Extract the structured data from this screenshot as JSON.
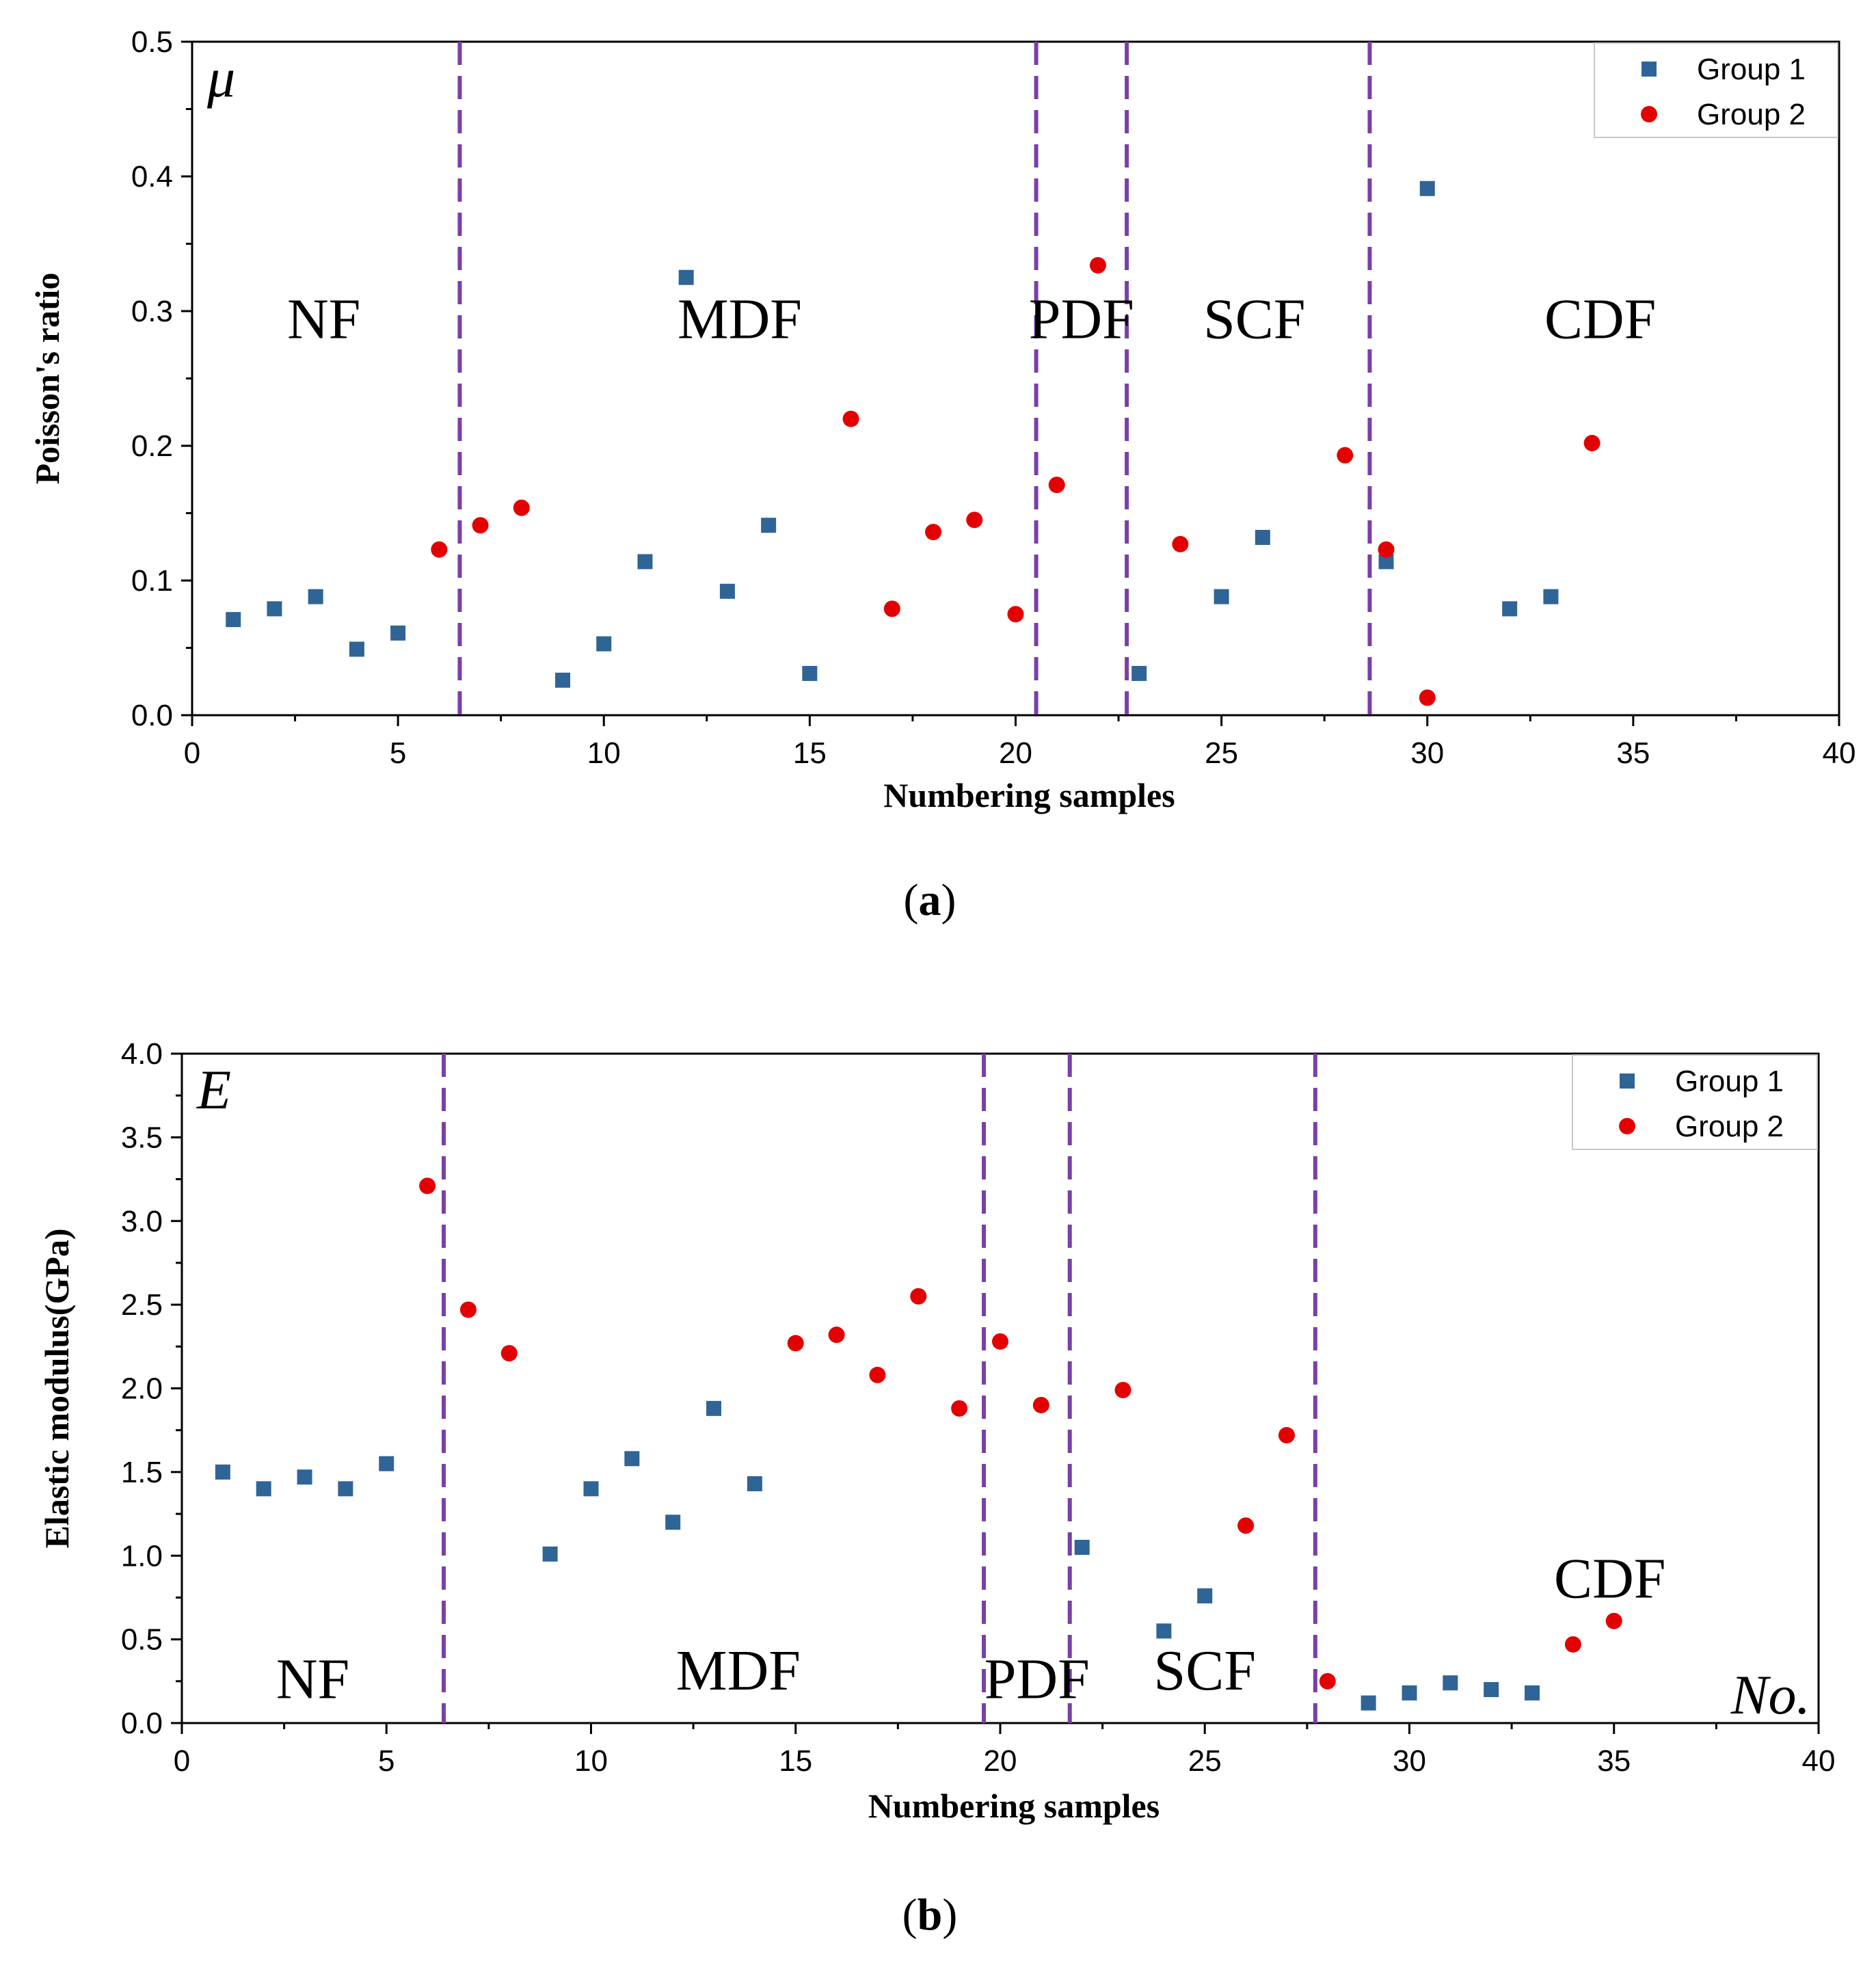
{
  "colors": {
    "group1": "#2f6497",
    "group2": "#e30000",
    "divider": "#7a3fa8",
    "axis": "#000000",
    "legend_border": "#c8c8c8"
  },
  "chart_data": [
    {
      "id": "a",
      "type": "scatter",
      "caption_open": "(",
      "caption_letter": "a",
      "caption_close": ")",
      "corner_symbol": "μ",
      "xlabel": "Numbering samples",
      "ylabel": "Poisson's ratio",
      "xlim": [
        0,
        40
      ],
      "ylim": [
        0,
        0.5
      ],
      "xticks": [
        0,
        5,
        10,
        15,
        20,
        25,
        30,
        35,
        40
      ],
      "xtick_labels": [
        "0",
        "5",
        "10",
        "15",
        "20",
        "25",
        "30",
        "35",
        "40"
      ],
      "yticks": [
        0.0,
        0.1,
        0.2,
        0.3,
        0.4,
        0.5
      ],
      "ytick_labels": [
        "0.0",
        "0.1",
        "0.2",
        "0.3",
        "0.4",
        "0.5"
      ],
      "dividers": [
        6.5,
        20.5,
        22.7,
        28.6
      ],
      "regions": [
        {
          "label": "NF",
          "x": 3.2,
          "y": 0.28
        },
        {
          "label": "MDF",
          "x": 13.3,
          "y": 0.28
        },
        {
          "label": "PDF",
          "x": 21.6,
          "y": 0.28
        },
        {
          "label": "SCF",
          "x": 25.8,
          "y": 0.28
        },
        {
          "label": "CDF",
          "x": 34.2,
          "y": 0.28
        }
      ],
      "legend_position": "top-right",
      "series": [
        {
          "name": "Group 1",
          "marker": "square",
          "points": [
            [
              1,
              0.071
            ],
            [
              2,
              0.079
            ],
            [
              3,
              0.088
            ],
            [
              4,
              0.049
            ],
            [
              5,
              0.061
            ],
            [
              9,
              0.026
            ],
            [
              10,
              0.053
            ],
            [
              11,
              0.114
            ],
            [
              12,
              0.325
            ],
            [
              13,
              0.092
            ],
            [
              14,
              0.141
            ],
            [
              15,
              0.031
            ],
            [
              23,
              0.031
            ],
            [
              25,
              0.088
            ],
            [
              26,
              0.132
            ],
            [
              29,
              0.114
            ],
            [
              30,
              0.391
            ],
            [
              32,
              0.079
            ],
            [
              33,
              0.088
            ]
          ]
        },
        {
          "name": "Group 2",
          "marker": "circle",
          "points": [
            [
              6,
              0.123
            ],
            [
              7,
              0.141
            ],
            [
              8,
              0.154
            ],
            [
              16,
              0.22
            ],
            [
              17,
              0.079
            ],
            [
              18,
              0.136
            ],
            [
              19,
              0.145
            ],
            [
              20,
              0.075
            ],
            [
              21,
              0.171
            ],
            [
              22,
              0.334
            ],
            [
              24,
              0.127
            ],
            [
              28,
              0.193
            ],
            [
              29,
              0.123
            ],
            [
              30,
              0.013
            ],
            [
              34,
              0.202
            ]
          ]
        }
      ]
    },
    {
      "id": "b",
      "type": "scatter",
      "caption_open": "(",
      "caption_letter": "b",
      "caption_close": ")",
      "corner_symbol": "E",
      "corner_symbol_right": "No.",
      "xlabel": "Numbering samples",
      "ylabel": "Elastic modulus(GPa)",
      "xlim": [
        0,
        40
      ],
      "ylim": [
        0,
        4.0
      ],
      "xticks": [
        0,
        5,
        10,
        15,
        20,
        25,
        30,
        35,
        40
      ],
      "xtick_labels": [
        "0",
        "5",
        "10",
        "15",
        "20",
        "25",
        "30",
        "35",
        "40"
      ],
      "yticks": [
        0.0,
        0.5,
        1.0,
        1.5,
        2.0,
        2.5,
        3.0,
        3.5,
        4.0
      ],
      "ytick_labels": [
        "0.0",
        "0.5",
        "1.0",
        "1.5",
        "2.0",
        "2.5",
        "3.0",
        "3.5",
        "4.0"
      ],
      "dividers": [
        6.4,
        19.6,
        21.7,
        27.7
      ],
      "regions": [
        {
          "label": "NF",
          "x": 3.2,
          "y": 0.15
        },
        {
          "label": "MDF",
          "x": 13.6,
          "y": 0.2
        },
        {
          "label": "PDF",
          "x": 20.9,
          "y": 0.15
        },
        {
          "label": "SCF",
          "x": 25.0,
          "y": 0.2
        },
        {
          "label": "CDF",
          "x": 34.9,
          "y": 0.75
        }
      ],
      "legend_position": "top-right",
      "series": [
        {
          "name": "Group 1",
          "marker": "square",
          "points": [
            [
              1,
              1.5
            ],
            [
              2,
              1.4
            ],
            [
              3,
              1.47
            ],
            [
              4,
              1.4
            ],
            [
              5,
              1.55
            ],
            [
              9,
              1.01
            ],
            [
              10,
              1.4
            ],
            [
              11,
              1.58
            ],
            [
              12,
              1.2
            ],
            [
              13,
              1.88
            ],
            [
              14,
              1.43
            ],
            [
              22,
              1.05
            ],
            [
              24,
              0.55
            ],
            [
              25,
              0.76
            ],
            [
              29,
              0.12
            ],
            [
              30,
              0.18
            ],
            [
              31,
              0.24
            ],
            [
              32,
              0.2
            ],
            [
              33,
              0.18
            ]
          ]
        },
        {
          "name": "Group 2",
          "marker": "circle",
          "points": [
            [
              6,
              3.21
            ],
            [
              7,
              2.47
            ],
            [
              8,
              2.21
            ],
            [
              15,
              2.27
            ],
            [
              16,
              2.32
            ],
            [
              17,
              2.08
            ],
            [
              18,
              2.55
            ],
            [
              19,
              1.88
            ],
            [
              20,
              2.28
            ],
            [
              21,
              1.9
            ],
            [
              23,
              1.99
            ],
            [
              26,
              1.18
            ],
            [
              27,
              1.72
            ],
            [
              28,
              0.25
            ],
            [
              34,
              0.47
            ],
            [
              35,
              0.61
            ]
          ]
        }
      ]
    }
  ]
}
